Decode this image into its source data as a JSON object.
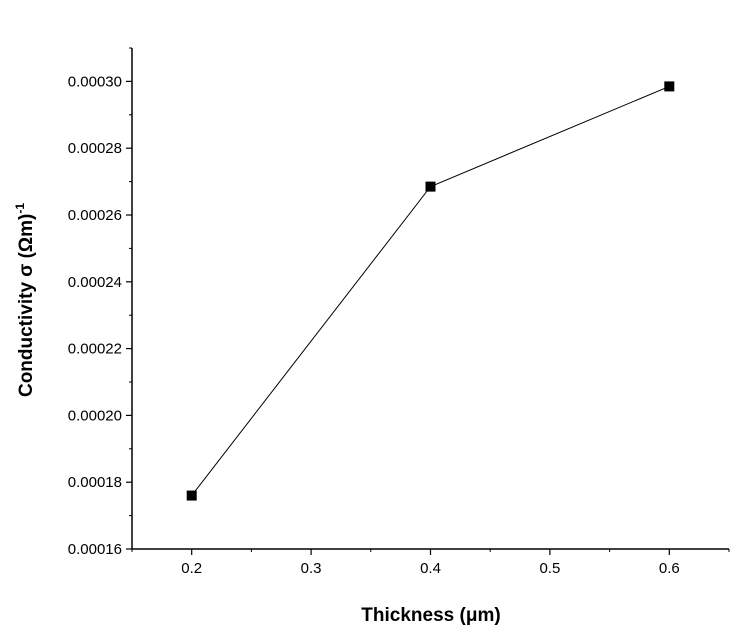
{
  "chart_data": {
    "type": "line",
    "x": [
      0.2,
      0.4,
      0.6
    ],
    "series": [
      {
        "values": [
          0.000176,
          0.0002685,
          0.0002985
        ],
        "color": "#000000",
        "marker": "square"
      }
    ],
    "xlabel": "Thickness (μm)",
    "ylabel": "Conductivity σ (Ωm)",
    "ylabel_superscript": "-1",
    "xlim": [
      0.15,
      0.65
    ],
    "ylim": [
      0.00016,
      0.00031
    ],
    "xticks": [
      0.2,
      0.3,
      0.4,
      0.5,
      0.6
    ],
    "xtick_labels": [
      "0.2",
      "0.3",
      "0.4",
      "0.5",
      "0.6"
    ],
    "yticks": [
      0.00016,
      0.00018,
      0.0002,
      0.00022,
      0.00024,
      0.00026,
      0.00028,
      0.0003
    ],
    "ytick_labels": [
      "0.00016",
      "0.00018",
      "0.00020",
      "0.00022",
      "0.00024",
      "0.00026",
      "0.00028",
      "0.00030"
    ],
    "grid": false,
    "legend": "none"
  }
}
